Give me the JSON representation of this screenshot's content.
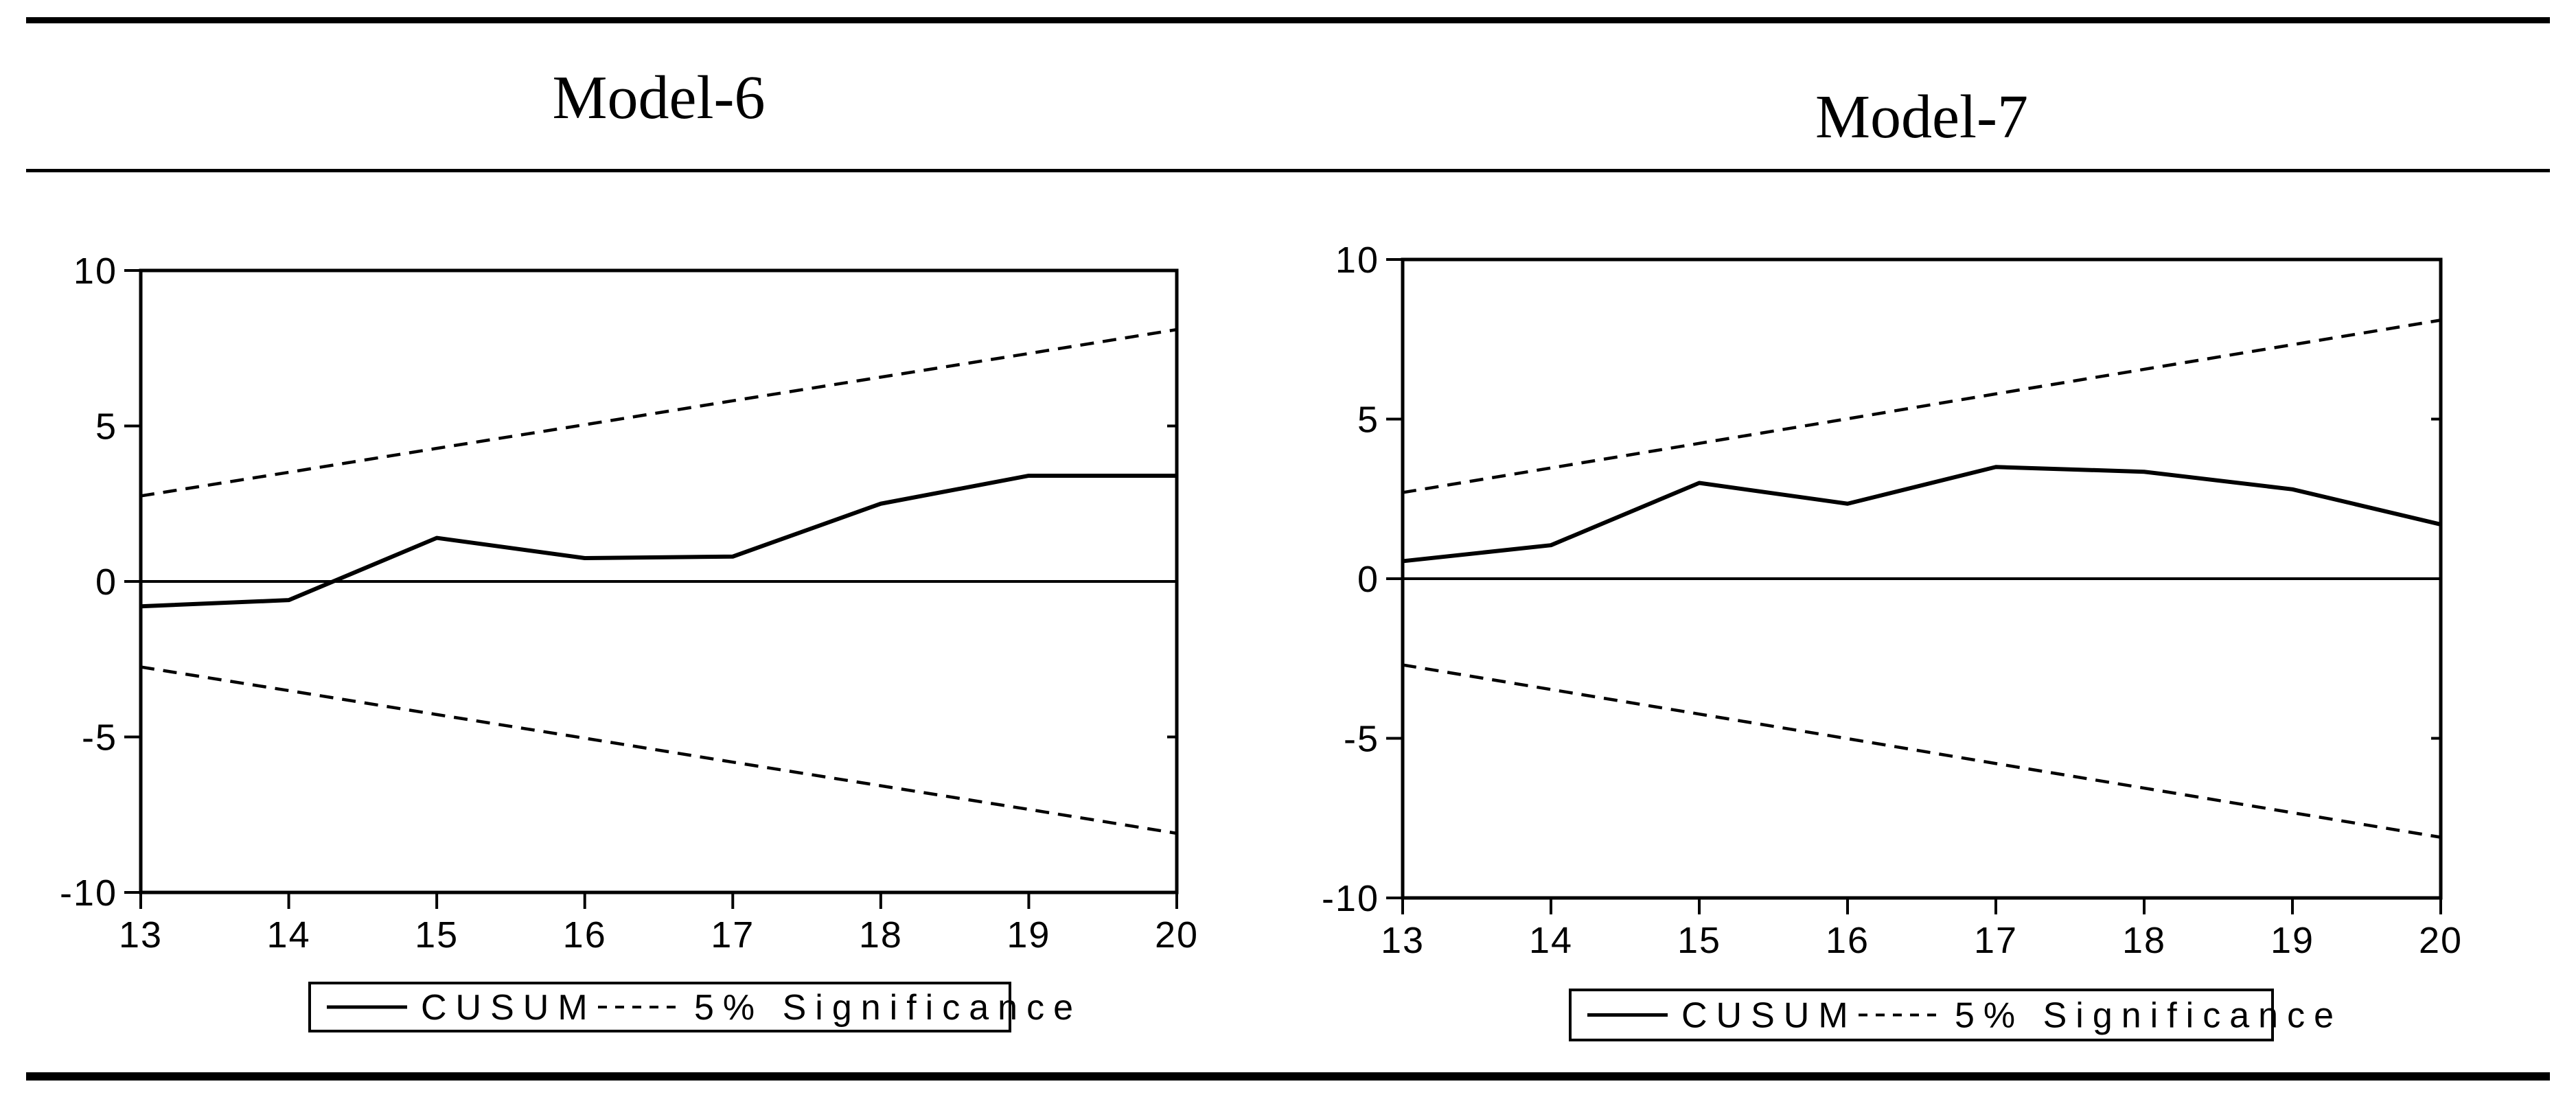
{
  "figure": {
    "titles": [
      "Model-6",
      "Model-7"
    ],
    "colors": {
      "foreground": "#000000",
      "background": "#ffffff"
    }
  },
  "chart_data": [
    {
      "type": "line",
      "title": "Model-6",
      "x": [
        13,
        14,
        15,
        16,
        17,
        18,
        19,
        20
      ],
      "xlabel": "",
      "ylabel": "",
      "xlim": [
        13,
        20
      ],
      "ylim": [
        -10,
        10
      ],
      "xticks": [
        13,
        14,
        15,
        16,
        17,
        18,
        19,
        20
      ],
      "yticks": [
        10,
        5,
        0,
        -5,
        -10
      ],
      "grid": false,
      "zero_line": true,
      "legend_position": "bottom-center-boxed",
      "series": [
        {
          "name": "CUSUM",
          "style": "solid",
          "values": [
            -0.8,
            -0.6,
            1.4,
            0.75,
            0.8,
            2.5,
            3.4,
            3.4
          ]
        },
        {
          "name": "5% Significance (upper bound)",
          "style": "dashed",
          "values": [
            2.75,
            3.51,
            4.28,
            5.04,
            5.81,
            6.57,
            7.33,
            8.1
          ]
        },
        {
          "name": "5% Significance (lower bound)",
          "style": "dashed",
          "values": [
            -2.75,
            -3.51,
            -4.28,
            -5.04,
            -5.81,
            -6.57,
            -7.33,
            -8.1
          ]
        }
      ],
      "legend": [
        {
          "label": "CUSUM",
          "line": "solid"
        },
        {
          "label": "5% Significance",
          "line": "dashed"
        }
      ]
    },
    {
      "type": "line",
      "title": "Model-7",
      "x": [
        13,
        14,
        15,
        16,
        17,
        18,
        19,
        20
      ],
      "xlabel": "",
      "ylabel": "",
      "xlim": [
        13,
        20
      ],
      "ylim": [
        -10,
        10
      ],
      "xticks": [
        13,
        14,
        15,
        16,
        17,
        18,
        19,
        20
      ],
      "yticks": [
        10,
        5,
        0,
        -5,
        -10
      ],
      "grid": false,
      "zero_line": true,
      "legend_position": "bottom-center-boxed",
      "series": [
        {
          "name": "CUSUM",
          "style": "solid",
          "values": [
            0.55,
            1.05,
            3.0,
            2.35,
            3.5,
            3.35,
            2.8,
            1.7
          ]
        },
        {
          "name": "5% Significance (upper bound)",
          "style": "dashed",
          "values": [
            2.7,
            3.47,
            4.24,
            5.01,
            5.79,
            6.56,
            7.33,
            8.1
          ]
        },
        {
          "name": "5% Significance (lower bound)",
          "style": "dashed",
          "values": [
            -2.7,
            -3.47,
            -4.24,
            -5.01,
            -5.79,
            -6.56,
            -7.33,
            -8.1
          ]
        }
      ],
      "legend": [
        {
          "label": "CUSUM",
          "line": "solid"
        },
        {
          "label": "5% Significance",
          "line": "dashed"
        }
      ]
    }
  ]
}
